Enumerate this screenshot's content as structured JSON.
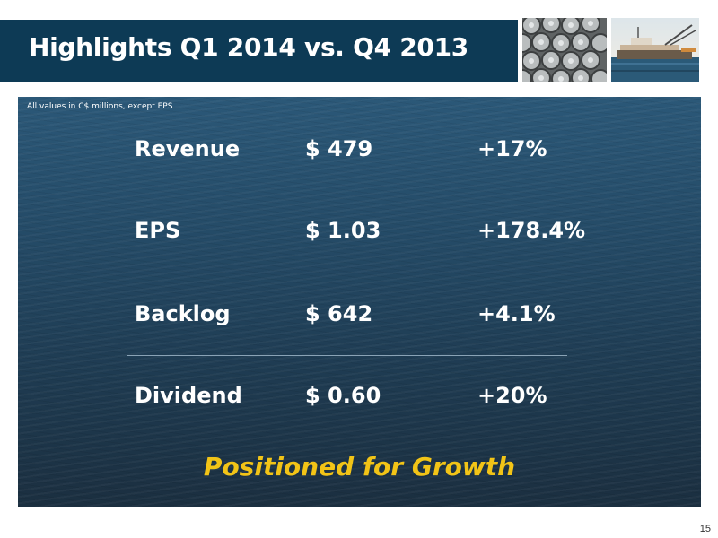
{
  "slide": {
    "title": "Highlights Q1 2014 vs. Q4 2013",
    "footnote": "All values in C$ millions, except EPS",
    "metrics": [
      {
        "label": "Revenue",
        "value": "$ 479",
        "change": "+17%"
      },
      {
        "label": "EPS",
        "value": "$ 1.03",
        "change": "+178.4%"
      },
      {
        "label": "Backlog",
        "value": "$ 642",
        "change": "+4.1%"
      },
      {
        "label": "Dividend",
        "value": "$ 0.60",
        "change": "+20%"
      }
    ],
    "tagline": "Positioned for Growth",
    "page_number": "15"
  },
  "colors": {
    "title_bar": "#0d3a55",
    "tagline": "#f2c417",
    "text": "#ffffff"
  }
}
